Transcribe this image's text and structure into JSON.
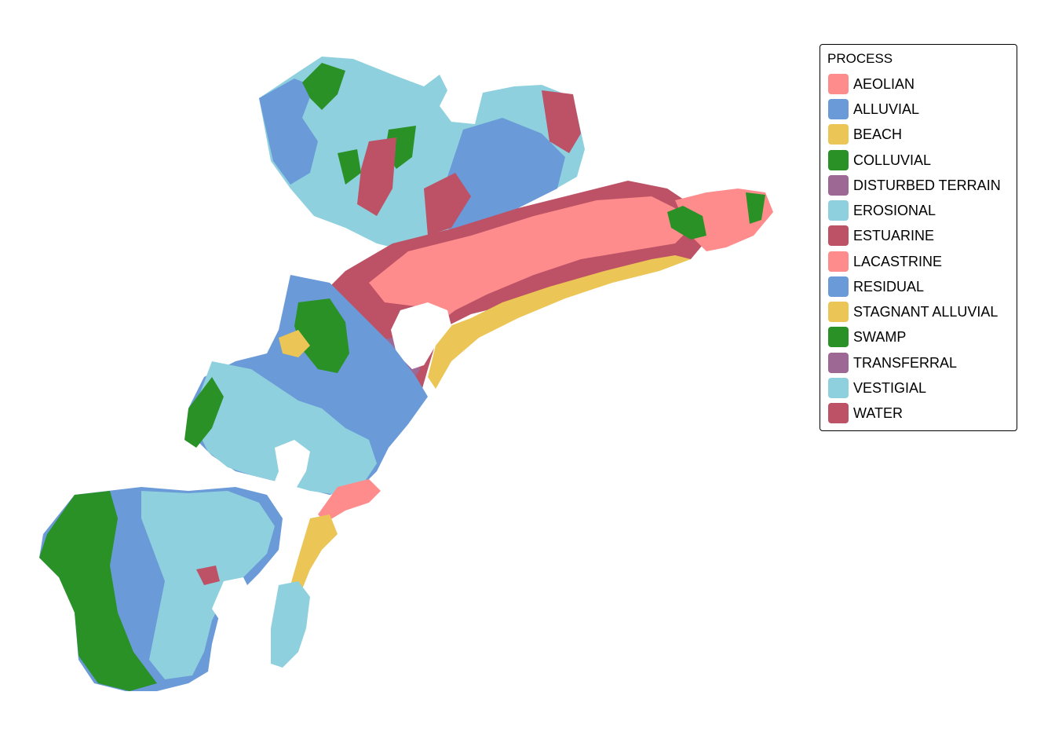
{
  "legend": {
    "title": "PROCESS",
    "items": [
      {
        "label": "AEOLIAN",
        "color": "#FF8C8C"
      },
      {
        "label": "ALLUVIAL",
        "color": "#6A9AD8"
      },
      {
        "label": "BEACH",
        "color": "#EBC555"
      },
      {
        "label": "COLLUVIAL",
        "color": "#2A9127"
      },
      {
        "label": "DISTURBED TERRAIN",
        "color": "#9E6894"
      },
      {
        "label": "EROSIONAL",
        "color": "#8ED0DE"
      },
      {
        "label": "ESTUARINE",
        "color": "#BD5267"
      },
      {
        "label": "LACASTRINE",
        "color": "#FF8C8C"
      },
      {
        "label": "RESIDUAL",
        "color": "#6A9AD8"
      },
      {
        "label": "STAGNANT ALLUVIAL",
        "color": "#EBC555"
      },
      {
        "label": "SWAMP",
        "color": "#2A9127"
      },
      {
        "label": "TRANSFERRAL",
        "color": "#9E6894"
      },
      {
        "label": "VESTIGIAL",
        "color": "#8ED0DE"
      },
      {
        "label": "WATER",
        "color": "#BD5267"
      }
    ]
  }
}
